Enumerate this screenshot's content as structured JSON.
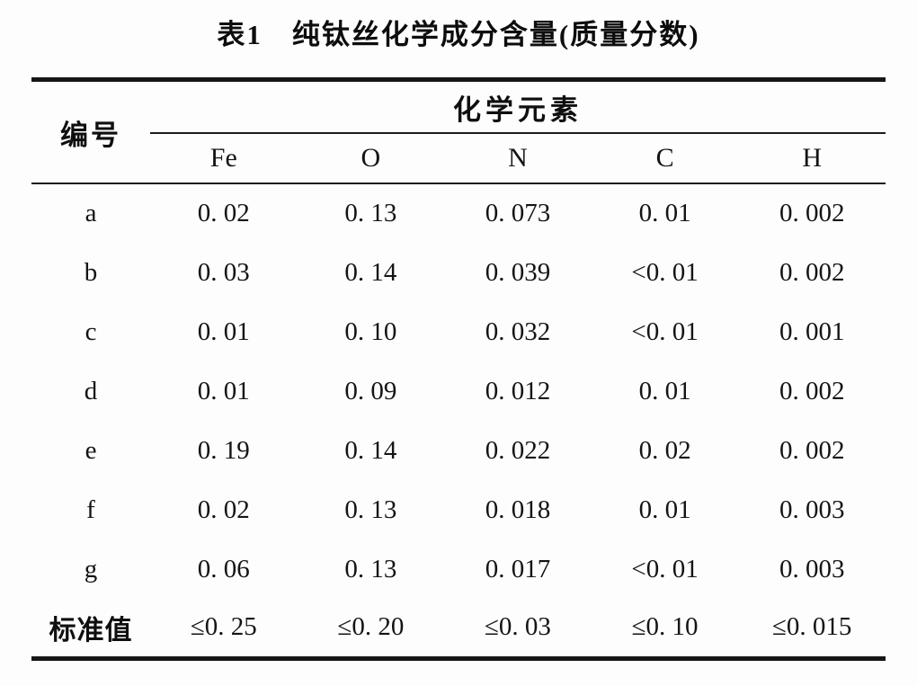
{
  "title": "表1　纯钛丝化学成分含量(质量分数)",
  "table": {
    "corner_header": "编号",
    "group_header": "化学元素",
    "columns": [
      "Fe",
      "O",
      "N",
      "C",
      "H"
    ],
    "rows": [
      {
        "label": "a",
        "values": [
          "0. 02",
          "0. 13",
          "0. 073",
          "0. 01",
          "0. 002"
        ]
      },
      {
        "label": "b",
        "values": [
          "0. 03",
          "0. 14",
          "0. 039",
          "<0. 01",
          "0. 002"
        ]
      },
      {
        "label": "c",
        "values": [
          "0. 01",
          "0. 10",
          "0. 032",
          "<0. 01",
          "0. 001"
        ]
      },
      {
        "label": "d",
        "values": [
          "0. 01",
          "0. 09",
          "0. 012",
          "0. 01",
          "0. 002"
        ]
      },
      {
        "label": "e",
        "values": [
          "0. 19",
          "0. 14",
          "0. 022",
          "0. 02",
          "0. 002"
        ]
      },
      {
        "label": "f",
        "values": [
          "0. 02",
          "0. 13",
          "0. 018",
          "0. 01",
          "0. 003"
        ]
      },
      {
        "label": "g",
        "values": [
          "0. 06",
          "0. 13",
          "0. 017",
          "<0. 01",
          "0. 003"
        ]
      },
      {
        "label": "标准值",
        "values": [
          "≤0. 25",
          "≤0. 20",
          "≤0. 03",
          "≤0. 10",
          "≤0. 015"
        ]
      }
    ]
  },
  "chart_data": {
    "type": "table",
    "title": "表1　纯钛丝化学成分含量(质量分数)",
    "row_header": "编号",
    "column_group": "化学元素",
    "columns": [
      "Fe",
      "O",
      "N",
      "C",
      "H"
    ],
    "rows": [
      [
        "a",
        0.02,
        0.13,
        0.073,
        0.01,
        0.002
      ],
      [
        "b",
        0.03,
        0.14,
        0.039,
        "<0.01",
        0.002
      ],
      [
        "c",
        0.01,
        0.1,
        0.032,
        "<0.01",
        0.001
      ],
      [
        "d",
        0.01,
        0.09,
        0.012,
        0.01,
        0.002
      ],
      [
        "e",
        0.19,
        0.14,
        0.022,
        0.02,
        0.002
      ],
      [
        "f",
        0.02,
        0.13,
        0.018,
        0.01,
        0.003
      ],
      [
        "g",
        0.06,
        0.13,
        0.017,
        "<0.01",
        0.003
      ],
      [
        "标准值",
        "≤0.25",
        "≤0.20",
        "≤0.03",
        "≤0.10",
        "≤0.015"
      ]
    ]
  },
  "colors": {
    "background": "#fdfdfd",
    "text": "#141414",
    "rule": "#161616"
  }
}
